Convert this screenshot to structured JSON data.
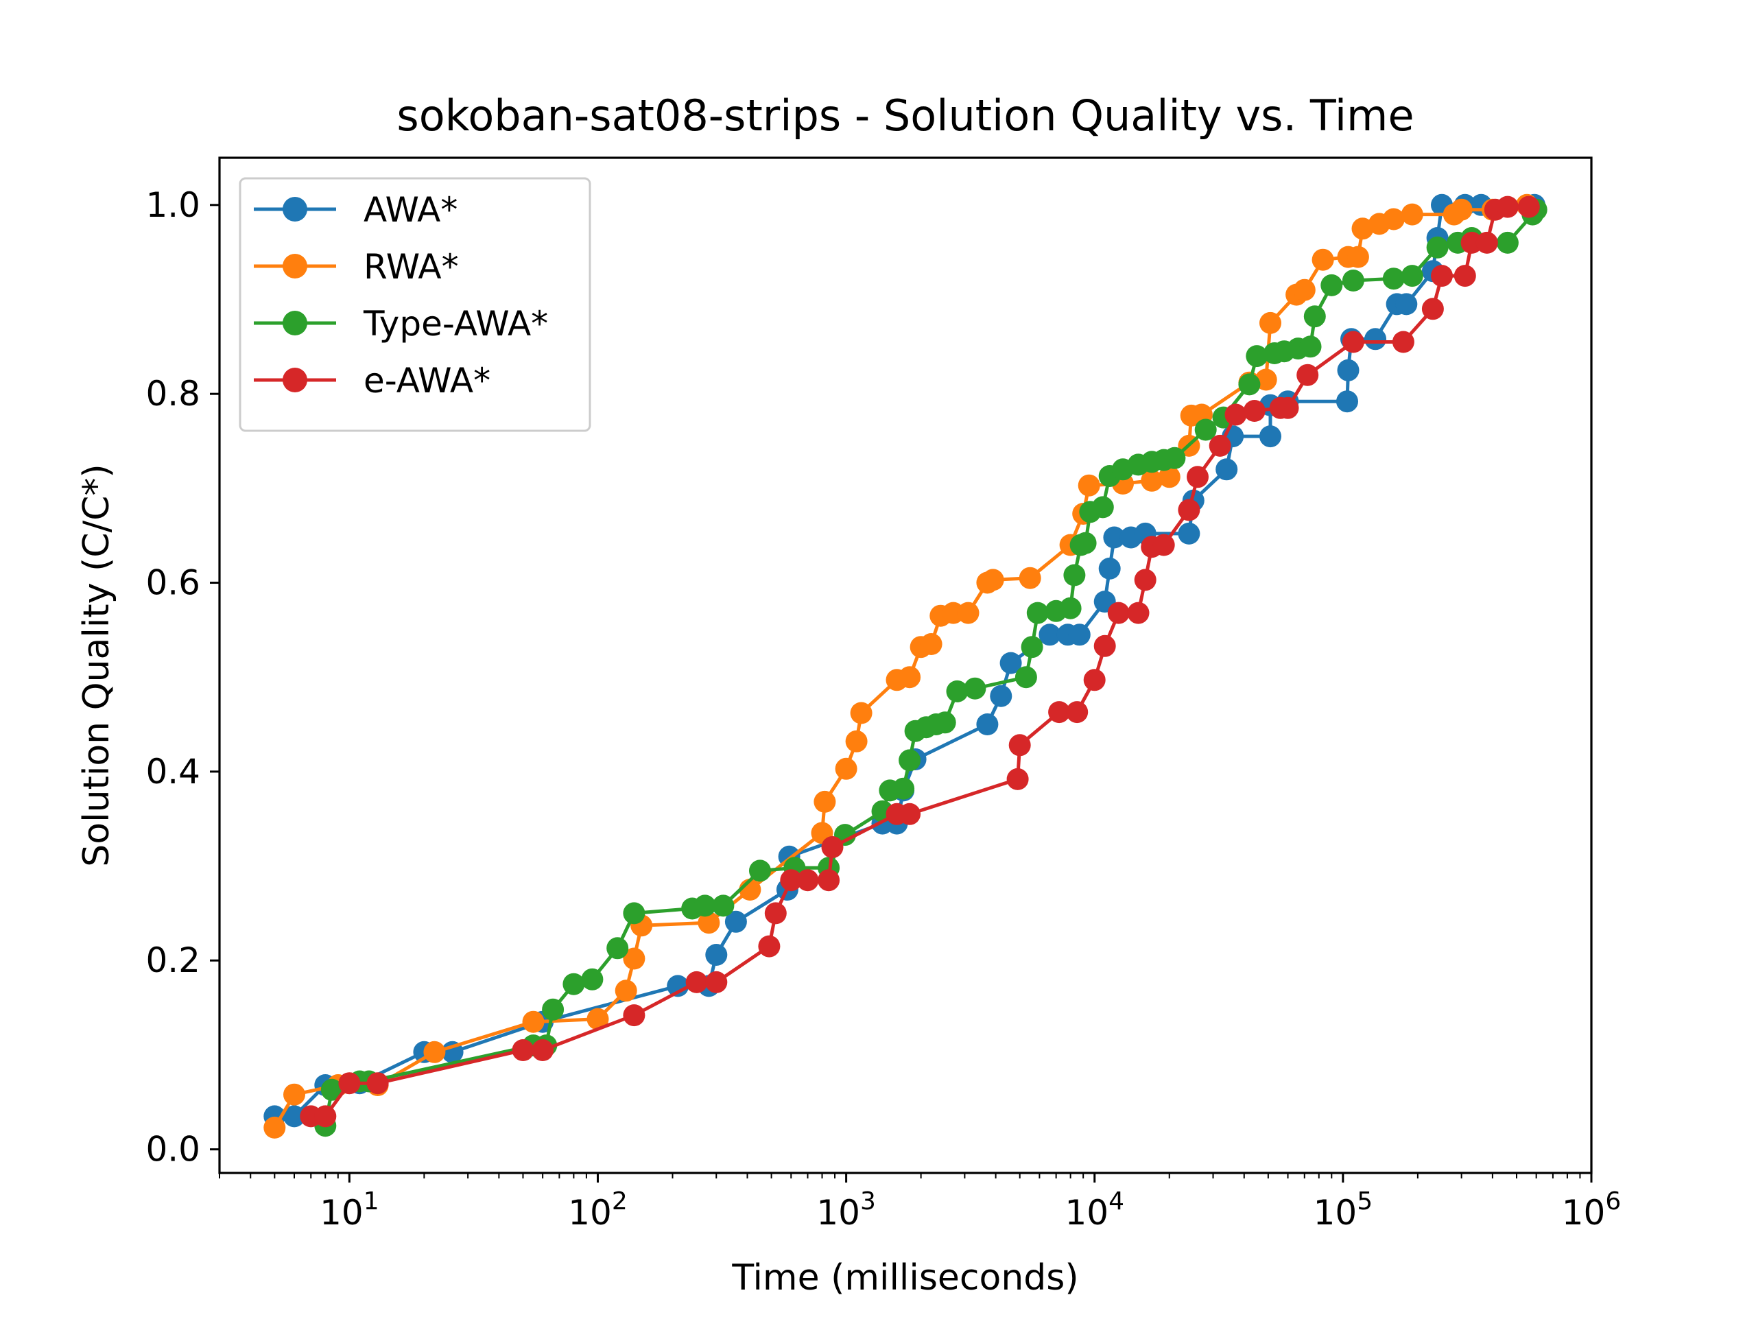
{
  "chart_data": {
    "type": "line",
    "title": "sokoban-sat08-strips - Solution Quality vs. Time",
    "xlabel": "Time (milliseconds)",
    "ylabel": "Solution Quality (C/C*)",
    "xscale": "log",
    "xlim": [
      3,
      1000000
    ],
    "ylim": [
      -0.025,
      1.05
    ],
    "grid": false,
    "legend_position": "top-left",
    "x_ticks": [
      {
        "value": 10,
        "base": "10",
        "exp": "1"
      },
      {
        "value": 100,
        "base": "10",
        "exp": "2"
      },
      {
        "value": 1000,
        "base": "10",
        "exp": "3"
      },
      {
        "value": 10000,
        "base": "10",
        "exp": "4"
      },
      {
        "value": 100000,
        "base": "10",
        "exp": "5"
      },
      {
        "value": 1000000,
        "base": "10",
        "exp": "6"
      }
    ],
    "y_ticks": [
      {
        "value": 0.0,
        "label": "0.0"
      },
      {
        "value": 0.2,
        "label": "0.2"
      },
      {
        "value": 0.4,
        "label": "0.4"
      },
      {
        "value": 0.6,
        "label": "0.6"
      },
      {
        "value": 0.8,
        "label": "0.8"
      },
      {
        "value": 1.0,
        "label": "1.0"
      }
    ],
    "series": [
      {
        "name": "AWA*",
        "color": "#1f77b4",
        "points": [
          [
            5,
            0.035
          ],
          [
            6,
            0.035
          ],
          [
            8,
            0.068
          ],
          [
            11,
            0.07
          ],
          [
            20,
            0.103
          ],
          [
            26,
            0.103
          ],
          [
            60,
            0.135
          ],
          [
            210,
            0.173
          ],
          [
            280,
            0.173
          ],
          [
            300,
            0.206
          ],
          [
            360,
            0.241
          ],
          [
            580,
            0.275
          ],
          [
            590,
            0.31
          ],
          [
            1400,
            0.345
          ],
          [
            1600,
            0.345
          ],
          [
            1700,
            0.38
          ],
          [
            1900,
            0.413
          ],
          [
            3700,
            0.45
          ],
          [
            4200,
            0.48
          ],
          [
            4600,
            0.515
          ],
          [
            6600,
            0.545
          ],
          [
            7800,
            0.545
          ],
          [
            8700,
            0.545
          ],
          [
            11000,
            0.58
          ],
          [
            11500,
            0.615
          ],
          [
            12000,
            0.648
          ],
          [
            14000,
            0.648
          ],
          [
            16000,
            0.652
          ],
          [
            24000,
            0.652
          ],
          [
            25000,
            0.687
          ],
          [
            34000,
            0.72
          ],
          [
            36000,
            0.755
          ],
          [
            51000,
            0.755
          ],
          [
            51000,
            0.788
          ],
          [
            60000,
            0.792
          ],
          [
            104000,
            0.792
          ],
          [
            105000,
            0.825
          ],
          [
            108000,
            0.858
          ],
          [
            135000,
            0.858
          ],
          [
            165000,
            0.895
          ],
          [
            180000,
            0.895
          ],
          [
            230000,
            0.93
          ],
          [
            240000,
            0.965
          ],
          [
            250000,
            1.0
          ],
          [
            310000,
            1.0
          ],
          [
            360000,
            1.0
          ],
          [
            590000,
            1.0
          ]
        ]
      },
      {
        "name": "RWA*",
        "color": "#ff7f0e",
        "points": [
          [
            5,
            0.023
          ],
          [
            6,
            0.058
          ],
          [
            9,
            0.068
          ],
          [
            13,
            0.068
          ],
          [
            22,
            0.103
          ],
          [
            55,
            0.135
          ],
          [
            100,
            0.138
          ],
          [
            130,
            0.168
          ],
          [
            140,
            0.202
          ],
          [
            150,
            0.237
          ],
          [
            280,
            0.24
          ],
          [
            410,
            0.275
          ],
          [
            800,
            0.335
          ],
          [
            820,
            0.368
          ],
          [
            1000,
            0.403
          ],
          [
            1100,
            0.432
          ],
          [
            1150,
            0.462
          ],
          [
            1600,
            0.497
          ],
          [
            1800,
            0.5
          ],
          [
            2000,
            0.532
          ],
          [
            2200,
            0.535
          ],
          [
            2400,
            0.565
          ],
          [
            2700,
            0.568
          ],
          [
            3100,
            0.568
          ],
          [
            3700,
            0.6
          ],
          [
            3900,
            0.603
          ],
          [
            5500,
            0.605
          ],
          [
            8000,
            0.64
          ],
          [
            9000,
            0.673
          ],
          [
            9500,
            0.703
          ],
          [
            13000,
            0.705
          ],
          [
            17000,
            0.708
          ],
          [
            20000,
            0.712
          ],
          [
            24000,
            0.745
          ],
          [
            24500,
            0.777
          ],
          [
            27000,
            0.778
          ],
          [
            42000,
            0.812
          ],
          [
            49000,
            0.815
          ],
          [
            51000,
            0.875
          ],
          [
            65000,
            0.905
          ],
          [
            70000,
            0.91
          ],
          [
            83000,
            0.942
          ],
          [
            105000,
            0.945
          ],
          [
            115000,
            0.945
          ],
          [
            120000,
            0.975
          ],
          [
            140000,
            0.98
          ],
          [
            160000,
            0.985
          ],
          [
            190000,
            0.99
          ],
          [
            280000,
            0.99
          ],
          [
            300000,
            0.995
          ],
          [
            400000,
            0.995
          ],
          [
            550000,
            1.0
          ]
        ]
      },
      {
        "name": "Type-AWA*",
        "color": "#2ca02c",
        "points": [
          [
            8,
            0.025
          ],
          [
            8.5,
            0.063
          ],
          [
            11,
            0.072
          ],
          [
            12,
            0.072
          ],
          [
            55,
            0.11
          ],
          [
            62,
            0.11
          ],
          [
            66,
            0.148
          ],
          [
            80,
            0.175
          ],
          [
            95,
            0.18
          ],
          [
            120,
            0.213
          ],
          [
            140,
            0.25
          ],
          [
            240,
            0.255
          ],
          [
            270,
            0.258
          ],
          [
            320,
            0.258
          ],
          [
            450,
            0.295
          ],
          [
            620,
            0.298
          ],
          [
            850,
            0.298
          ],
          [
            990,
            0.333
          ],
          [
            1400,
            0.358
          ],
          [
            1500,
            0.38
          ],
          [
            1700,
            0.382
          ],
          [
            1800,
            0.412
          ],
          [
            1900,
            0.443
          ],
          [
            2100,
            0.447
          ],
          [
            2300,
            0.45
          ],
          [
            2500,
            0.452
          ],
          [
            2800,
            0.485
          ],
          [
            3300,
            0.488
          ],
          [
            5300,
            0.5
          ],
          [
            5600,
            0.532
          ],
          [
            5900,
            0.568
          ],
          [
            7000,
            0.57
          ],
          [
            8000,
            0.573
          ],
          [
            8300,
            0.608
          ],
          [
            8800,
            0.64
          ],
          [
            9200,
            0.642
          ],
          [
            9600,
            0.675
          ],
          [
            10800,
            0.68
          ],
          [
            11500,
            0.713
          ],
          [
            13000,
            0.72
          ],
          [
            15000,
            0.725
          ],
          [
            17000,
            0.728
          ],
          [
            19000,
            0.73
          ],
          [
            21000,
            0.732
          ],
          [
            28000,
            0.762
          ],
          [
            33000,
            0.775
          ],
          [
            42000,
            0.81
          ],
          [
            45000,
            0.84
          ],
          [
            53000,
            0.843
          ],
          [
            58000,
            0.845
          ],
          [
            66000,
            0.848
          ],
          [
            74000,
            0.85
          ],
          [
            77000,
            0.882
          ],
          [
            90000,
            0.915
          ],
          [
            110000,
            0.92
          ],
          [
            160000,
            0.922
          ],
          [
            190000,
            0.925
          ],
          [
            240000,
            0.955
          ],
          [
            290000,
            0.96
          ],
          [
            330000,
            0.965
          ],
          [
            460000,
            0.96
          ],
          [
            580000,
            0.99
          ],
          [
            600000,
            0.995
          ]
        ]
      },
      {
        "name": "e-AWA*",
        "color": "#d62728",
        "points": [
          [
            7,
            0.035
          ],
          [
            8,
            0.035
          ],
          [
            10,
            0.07
          ],
          [
            13,
            0.07
          ],
          [
            50,
            0.105
          ],
          [
            60,
            0.105
          ],
          [
            140,
            0.142
          ],
          [
            250,
            0.177
          ],
          [
            300,
            0.177
          ],
          [
            490,
            0.215
          ],
          [
            520,
            0.25
          ],
          [
            600,
            0.285
          ],
          [
            700,
            0.285
          ],
          [
            850,
            0.285
          ],
          [
            880,
            0.32
          ],
          [
            1600,
            0.355
          ],
          [
            1800,
            0.355
          ],
          [
            4900,
            0.392
          ],
          [
            5000,
            0.428
          ],
          [
            7200,
            0.463
          ],
          [
            8500,
            0.463
          ],
          [
            10000,
            0.497
          ],
          [
            11000,
            0.533
          ],
          [
            12500,
            0.568
          ],
          [
            15000,
            0.568
          ],
          [
            16000,
            0.603
          ],
          [
            17000,
            0.638
          ],
          [
            19000,
            0.64
          ],
          [
            24000,
            0.677
          ],
          [
            26000,
            0.712
          ],
          [
            32000,
            0.745
          ],
          [
            37000,
            0.778
          ],
          [
            44000,
            0.782
          ],
          [
            56000,
            0.785
          ],
          [
            60000,
            0.785
          ],
          [
            72000,
            0.82
          ],
          [
            110000,
            0.855
          ],
          [
            175000,
            0.855
          ],
          [
            230000,
            0.89
          ],
          [
            250000,
            0.925
          ],
          [
            310000,
            0.925
          ],
          [
            330000,
            0.96
          ],
          [
            380000,
            0.96
          ],
          [
            410000,
            0.995
          ],
          [
            460000,
            0.998
          ],
          [
            560000,
            0.998
          ]
        ]
      }
    ]
  }
}
